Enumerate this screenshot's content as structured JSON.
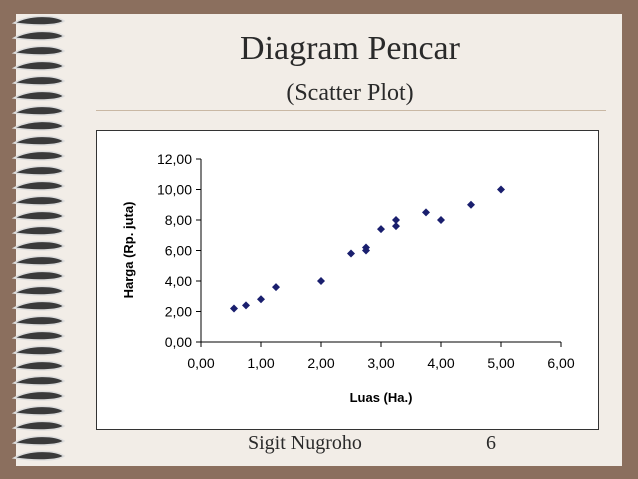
{
  "slide": {
    "title": "Diagram Pencar",
    "subtitle": "(Scatter Plot)",
    "author": "Sigit Nugroho",
    "page_number": "6"
  },
  "colors": {
    "background": "#8b6f5e",
    "slide": "#f2ede7",
    "marker": "#1a1f6e"
  },
  "chart_data": {
    "type": "scatter",
    "title": "",
    "xlabel": "Luas (Ha.)",
    "ylabel": "Harga (Rp. juta)",
    "xlim": [
      0,
      6
    ],
    "ylim": [
      0,
      12
    ],
    "xticks": [
      "0,00",
      "1,00",
      "2,00",
      "3,00",
      "4,00",
      "5,00",
      "6,00"
    ],
    "yticks": [
      "0,00",
      "2,00",
      "4,00",
      "6,00",
      "8,00",
      "10,00",
      "12,00"
    ],
    "grid": false,
    "legend": "none",
    "marker": "diamond",
    "points": [
      {
        "x": 0.55,
        "y": 2.2
      },
      {
        "x": 0.75,
        "y": 2.4
      },
      {
        "x": 1.0,
        "y": 2.8
      },
      {
        "x": 1.25,
        "y": 3.6
      },
      {
        "x": 2.0,
        "y": 4.0
      },
      {
        "x": 2.5,
        "y": 5.8
      },
      {
        "x": 2.75,
        "y": 6.0
      },
      {
        "x": 2.75,
        "y": 6.2
      },
      {
        "x": 3.0,
        "y": 7.4
      },
      {
        "x": 3.25,
        "y": 7.6
      },
      {
        "x": 3.25,
        "y": 8.0
      },
      {
        "x": 3.75,
        "y": 8.5
      },
      {
        "x": 4.0,
        "y": 8.0
      },
      {
        "x": 4.5,
        "y": 9.0
      },
      {
        "x": 5.0,
        "y": 10.0
      }
    ]
  }
}
